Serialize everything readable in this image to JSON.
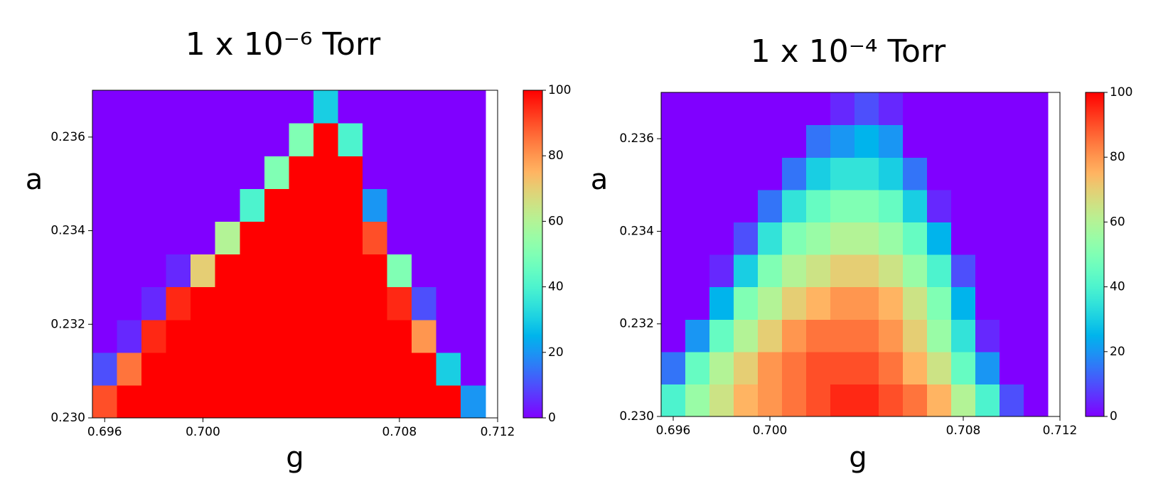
{
  "chart_data": [
    {
      "type": "heatmap",
      "title": "1 x 10⁻⁶ Torr",
      "xlabel": "g",
      "ylabel": "a",
      "colormap": "rainbow",
      "x": [
        0.696,
        0.697,
        0.698,
        0.699,
        0.7,
        0.701,
        0.702,
        0.703,
        0.704,
        0.705,
        0.706,
        0.707,
        0.708,
        0.709,
        0.71,
        0.711
      ],
      "y": [
        0.23035,
        0.23105,
        0.23175,
        0.23245,
        0.23315,
        0.23385,
        0.23455,
        0.23525,
        0.23595,
        0.23665
      ],
      "z": [
        [
          90,
          100,
          100,
          100,
          100,
          100,
          100,
          100,
          100,
          100,
          100,
          100,
          100,
          100,
          100,
          20
        ],
        [
          10,
          85,
          100,
          100,
          100,
          100,
          100,
          100,
          100,
          100,
          100,
          100,
          100,
          100,
          30,
          0
        ],
        [
          0,
          5,
          95,
          100,
          100,
          100,
          100,
          100,
          100,
          100,
          100,
          100,
          100,
          80,
          0,
          0
        ],
        [
          0,
          0,
          5,
          95,
          100,
          100,
          100,
          100,
          100,
          100,
          100,
          100,
          95,
          10,
          0,
          0
        ],
        [
          0,
          0,
          0,
          5,
          70,
          100,
          100,
          100,
          100,
          100,
          100,
          100,
          50,
          0,
          0,
          0
        ],
        [
          0,
          0,
          0,
          0,
          0,
          60,
          100,
          100,
          100,
          100,
          100,
          90,
          0,
          0,
          0,
          0
        ],
        [
          0,
          0,
          0,
          0,
          0,
          0,
          40,
          100,
          100,
          100,
          100,
          20,
          0,
          0,
          0,
          0
        ],
        [
          0,
          0,
          0,
          0,
          0,
          0,
          0,
          50,
          100,
          100,
          100,
          0,
          0,
          0,
          0,
          0
        ],
        [
          0,
          0,
          0,
          0,
          0,
          0,
          0,
          0,
          50,
          100,
          40,
          0,
          0,
          0,
          0,
          0
        ],
        [
          0,
          0,
          0,
          0,
          0,
          0,
          0,
          0,
          0,
          30,
          0,
          0,
          0,
          0,
          0,
          0
        ]
      ],
      "xlim": [
        0.6955,
        0.712
      ],
      "ylim": [
        0.23,
        0.237
      ],
      "xticks": [
        0.696,
        {
          "value": 0.7,
          "label": "0.700"
        },
        0.708,
        0.712
      ],
      "yticks": [
        {
          "value": 0.23,
          "label": "0.230"
        },
        0.232,
        0.234,
        0.236
      ],
      "clim": [
        0,
        100
      ],
      "cticks": [
        0,
        20,
        40,
        60,
        80,
        100
      ]
    },
    {
      "type": "heatmap",
      "title": "1 x 10⁻⁴ Torr",
      "xlabel": "g",
      "ylabel": "a",
      "colormap": "rainbow",
      "x": [
        0.696,
        0.697,
        0.698,
        0.699,
        0.7,
        0.701,
        0.702,
        0.703,
        0.704,
        0.705,
        0.706,
        0.707,
        0.708,
        0.709,
        0.71,
        0.711
      ],
      "y": [
        0.23035,
        0.23105,
        0.23175,
        0.23245,
        0.23315,
        0.23385,
        0.23455,
        0.23525,
        0.23595,
        0.23665
      ],
      "z": [
        [
          40,
          55,
          65,
          75,
          80,
          85,
          90,
          95,
          95,
          90,
          85,
          75,
          60,
          40,
          10,
          0
        ],
        [
          15,
          45,
          60,
          70,
          80,
          85,
          90,
          90,
          90,
          85,
          75,
          65,
          45,
          20,
          0,
          0
        ],
        [
          0,
          20,
          45,
          60,
          70,
          80,
          85,
          85,
          85,
          80,
          70,
          55,
          35,
          5,
          0,
          0
        ],
        [
          0,
          0,
          25,
          50,
          60,
          70,
          75,
          80,
          80,
          75,
          65,
          50,
          25,
          0,
          0,
          0
        ],
        [
          0,
          0,
          5,
          30,
          50,
          60,
          65,
          70,
          70,
          65,
          55,
          40,
          10,
          0,
          0,
          0
        ],
        [
          0,
          0,
          0,
          10,
          35,
          50,
          55,
          60,
          60,
          55,
          45,
          25,
          0,
          0,
          0,
          0
        ],
        [
          0,
          0,
          0,
          0,
          15,
          35,
          45,
          50,
          50,
          45,
          30,
          5,
          0,
          0,
          0,
          0
        ],
        [
          0,
          0,
          0,
          0,
          0,
          15,
          30,
          35,
          35,
          30,
          15,
          0,
          0,
          0,
          0,
          0
        ],
        [
          0,
          0,
          0,
          0,
          0,
          0,
          15,
          20,
          25,
          20,
          0,
          0,
          0,
          0,
          0,
          0
        ],
        [
          0,
          0,
          0,
          0,
          0,
          0,
          0,
          5,
          10,
          5,
          0,
          0,
          0,
          0,
          0,
          0
        ]
      ],
      "xlim": [
        0.6955,
        0.712
      ],
      "ylim": [
        0.23,
        0.237
      ],
      "xticks": [
        0.696,
        {
          "value": 0.7,
          "label": "0.700"
        },
        0.708,
        0.712
      ],
      "yticks": [
        {
          "value": 0.23,
          "label": "0.230"
        },
        0.232,
        0.234,
        0.236
      ],
      "clim": [
        0,
        100
      ],
      "cticks": [
        0,
        20,
        40,
        60,
        80,
        100
      ]
    }
  ]
}
